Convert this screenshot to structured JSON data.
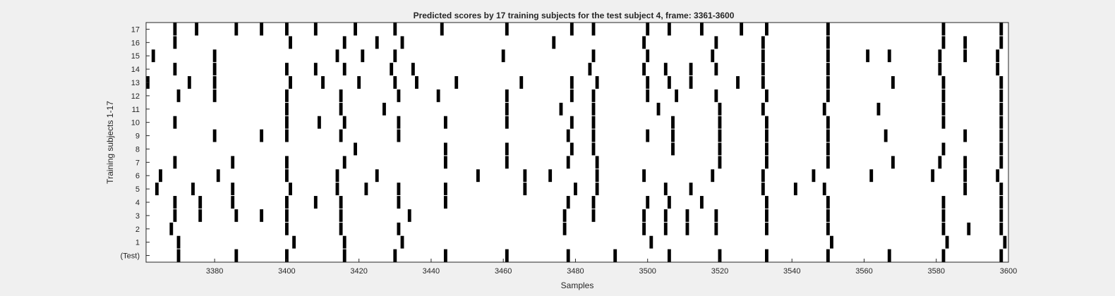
{
  "chart_data": {
    "type": "event-raster",
    "title": "Predicted scores by 17 training subjects for the test subject 4, frame: 3361-3600",
    "xlabel": "Samples",
    "ylabel": "Training subjects 1-17",
    "xlim": [
      3361,
      3600
    ],
    "x_ticks": [
      3380,
      3400,
      3420,
      3440,
      3460,
      3480,
      3500,
      3520,
      3540,
      3560,
      3580,
      3600
    ],
    "grid": false,
    "legend": "none",
    "bar_color": "#000000",
    "background_color": "#ffffff",
    "rows": [
      {
        "label": "(Test)",
        "events": [
          3370,
          3386,
          3400,
          3416,
          3430,
          3444,
          3461,
          3478,
          3491,
          3506,
          3520,
          3533,
          3550,
          3567,
          3582,
          3598
        ]
      },
      {
        "label": "1",
        "events": [
          3370,
          3402,
          3416,
          3432,
          3501,
          3551,
          3583,
          3599
        ]
      },
      {
        "label": "2",
        "events": [
          3368,
          3400,
          3415,
          3431,
          3477,
          3499,
          3505,
          3511,
          3519,
          3533,
          3550,
          3582,
          3589,
          3598
        ]
      },
      {
        "label": "3",
        "events": [
          3369,
          3376,
          3386,
          3393,
          3400,
          3415,
          3434,
          3477,
          3485,
          3499,
          3505,
          3511,
          3519,
          3533,
          3550,
          3582,
          3598
        ]
      },
      {
        "label": "4",
        "events": [
          3369,
          3376,
          3385,
          3400,
          3408,
          3415,
          3431,
          3444,
          3478,
          3485,
          3500,
          3506,
          3515,
          3533,
          3550,
          3582,
          3598
        ]
      },
      {
        "label": "5",
        "events": [
          3364,
          3374,
          3385,
          3401,
          3414,
          3422,
          3431,
          3444,
          3466,
          3480,
          3486,
          3505,
          3512,
          3532,
          3541,
          3549,
          3588,
          3598
        ]
      },
      {
        "label": "6",
        "events": [
          3365,
          3381,
          3400,
          3414,
          3425,
          3453,
          3466,
          3473,
          3486,
          3499,
          3518,
          3532,
          3546,
          3562,
          3579,
          3588,
          3597
        ]
      },
      {
        "label": "7",
        "events": [
          3369,
          3385,
          3400,
          3416,
          3444,
          3461,
          3478,
          3486,
          3520,
          3533,
          3550,
          3568,
          3581,
          3588,
          3598
        ]
      },
      {
        "label": "8",
        "events": [
          3419,
          3444,
          3461,
          3479,
          3485,
          3507,
          3520,
          3533,
          3550,
          3582,
          3598
        ]
      },
      {
        "label": "9",
        "events": [
          3380,
          3393,
          3400,
          3415,
          3431,
          3478,
          3485,
          3500,
          3507,
          3520,
          3533,
          3550,
          3566,
          3588,
          3598
        ]
      },
      {
        "label": "10",
        "events": [
          3369,
          3400,
          3409,
          3416,
          3431,
          3444,
          3461,
          3479,
          3485,
          3507,
          3520,
          3533,
          3550,
          3582,
          3598
        ]
      },
      {
        "label": "11",
        "events": [
          3400,
          3415,
          3427,
          3461,
          3476,
          3485,
          3503,
          3520,
          3532,
          3549,
          3564,
          3582,
          3598
        ]
      },
      {
        "label": "12",
        "events": [
          3370,
          3380,
          3400,
          3415,
          3431,
          3442,
          3461,
          3479,
          3485,
          3500,
          3508,
          3519,
          3533,
          3550,
          3582,
          3598
        ]
      },
      {
        "label": "13",
        "events": [
          3361,
          3373,
          3380,
          3401,
          3410,
          3420,
          3430,
          3436,
          3447,
          3465,
          3479,
          3486,
          3500,
          3506,
          3512,
          3525,
          3532,
          3550,
          3568,
          3582,
          3598
        ]
      },
      {
        "label": "14",
        "events": [
          3369,
          3380,
          3400,
          3408,
          3416,
          3429,
          3435,
          3484,
          3499,
          3505,
          3512,
          3519,
          3532,
          3550,
          3581,
          3597
        ]
      },
      {
        "label": "15",
        "events": [
          3363,
          3380,
          3414,
          3421,
          3430,
          3460,
          3485,
          3500,
          3518,
          3532,
          3550,
          3561,
          3567,
          3581,
          3588,
          3597
        ]
      },
      {
        "label": "16",
        "events": [
          3369,
          3401,
          3416,
          3425,
          3432,
          3474,
          3499,
          3519,
          3532,
          3550,
          3582,
          3588,
          3598
        ]
      },
      {
        "label": "17",
        "events": [
          3369,
          3375,
          3386,
          3393,
          3400,
          3408,
          3419,
          3430,
          3443,
          3461,
          3479,
          3485,
          3500,
          3506,
          3515,
          3526,
          3533,
          3550,
          3582,
          3598
        ]
      }
    ]
  }
}
